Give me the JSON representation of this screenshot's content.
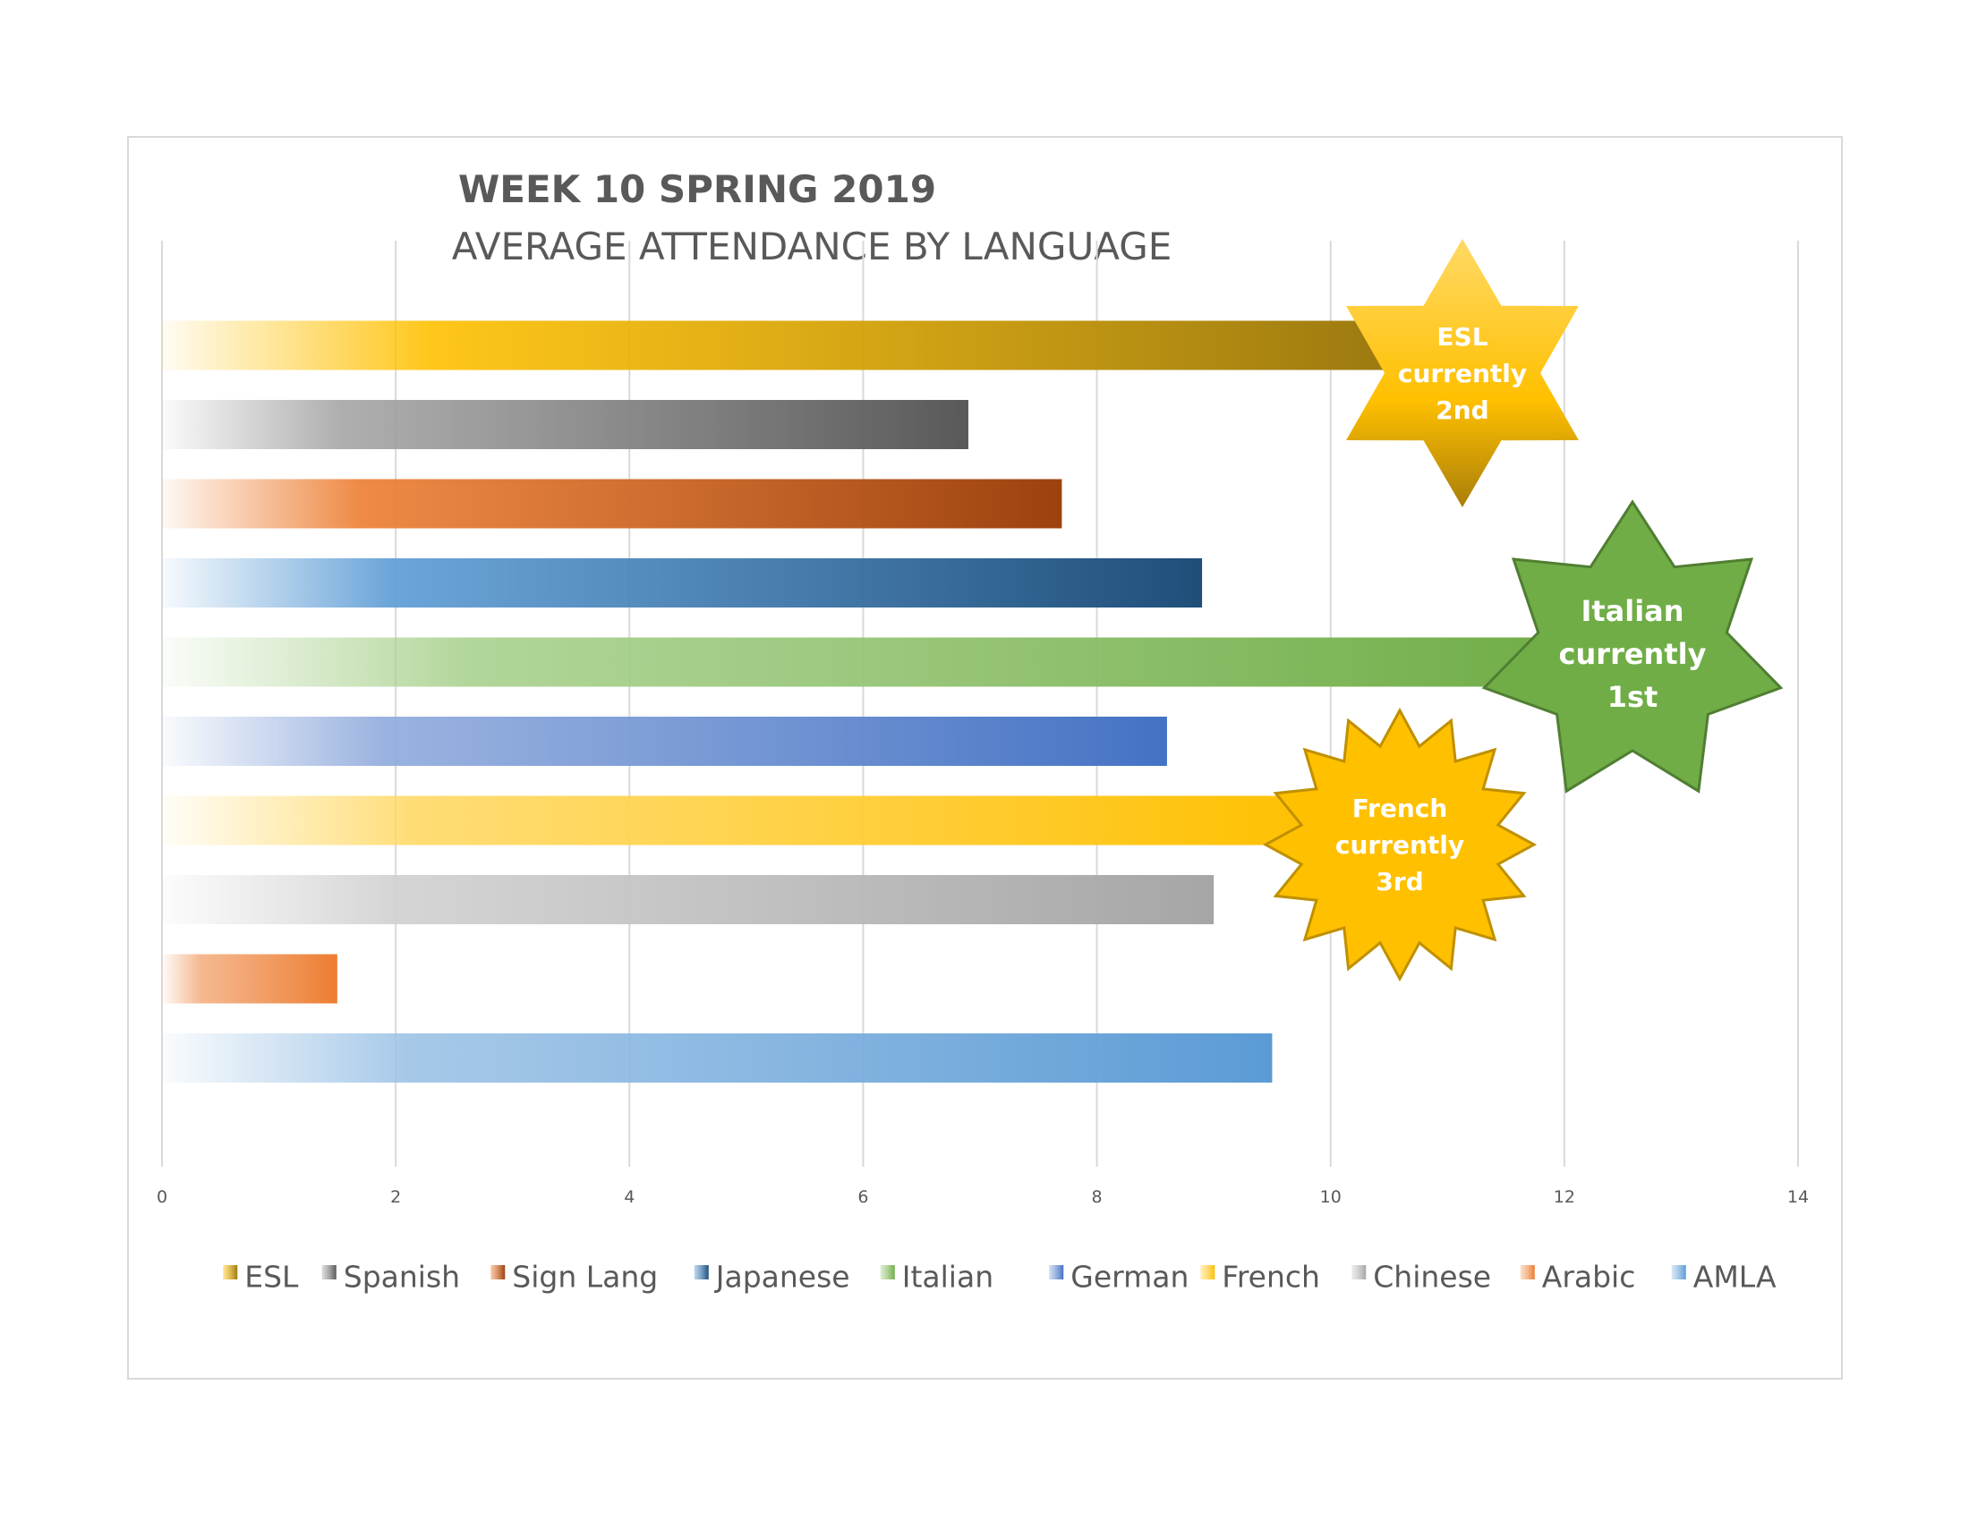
{
  "chart_data": {
    "type": "bar",
    "orientation": "horizontal",
    "title": "WEEK 10 SPRING 2019",
    "subtitle": "AVERAGE ATTENDANCE BY LANGUAGE",
    "xlim": [
      0,
      14
    ],
    "x_ticks": [
      "0",
      "2",
      "4",
      "6",
      "8",
      "10",
      "12",
      "14"
    ],
    "grid": "vertical",
    "legend_position": "bottom",
    "series": [
      {
        "name": "ESL",
        "value": 10.5,
        "color": "#9c7a10",
        "color_light": "#ffc000"
      },
      {
        "name": "Spanish",
        "value": 6.9,
        "color": "#595959",
        "color_light": "#a6a6a6"
      },
      {
        "name": "Sign Lang",
        "value": 7.7,
        "color": "#9c420f",
        "color_light": "#ed7d31"
      },
      {
        "name": "Japanese",
        "value": 8.9,
        "color": "#1f4e79",
        "color_light": "#5b9bd5"
      },
      {
        "name": "Italian",
        "value": 12.0,
        "color": "#70ad47",
        "color_light": "#a9d18e"
      },
      {
        "name": "German",
        "value": 8.6,
        "color": "#4472c4",
        "color_light": "#8faadc"
      },
      {
        "name": "French",
        "value": 9.9,
        "color": "#ffc000",
        "color_light": "#ffd966"
      },
      {
        "name": "Chinese",
        "value": 9.0,
        "color": "#a6a6a6",
        "color_light": "#d0d0d0"
      },
      {
        "name": "Arabic",
        "value": 1.5,
        "color": "#ed7d31",
        "color_light": "#f4b183"
      },
      {
        "name": "AMLA",
        "value": 9.5,
        "color": "#5b9bd5",
        "color_light": "#9dc3e6"
      }
    ],
    "annotations": [
      {
        "lines": [
          "ESL",
          "currently",
          "2nd"
        ],
        "shape": "six-point-star",
        "fill": "#ffc000",
        "fill_dark": "#a97e0a"
      },
      {
        "lines": [
          "Italian",
          "currently",
          "1st"
        ],
        "shape": "seven-point-star",
        "fill": "#70ad47",
        "stroke": "#507e32"
      },
      {
        "lines": [
          "French",
          "currently",
          "3rd"
        ],
        "shape": "sixteen-point-star",
        "fill": "#ffc000",
        "stroke": "#bf9000"
      }
    ]
  }
}
